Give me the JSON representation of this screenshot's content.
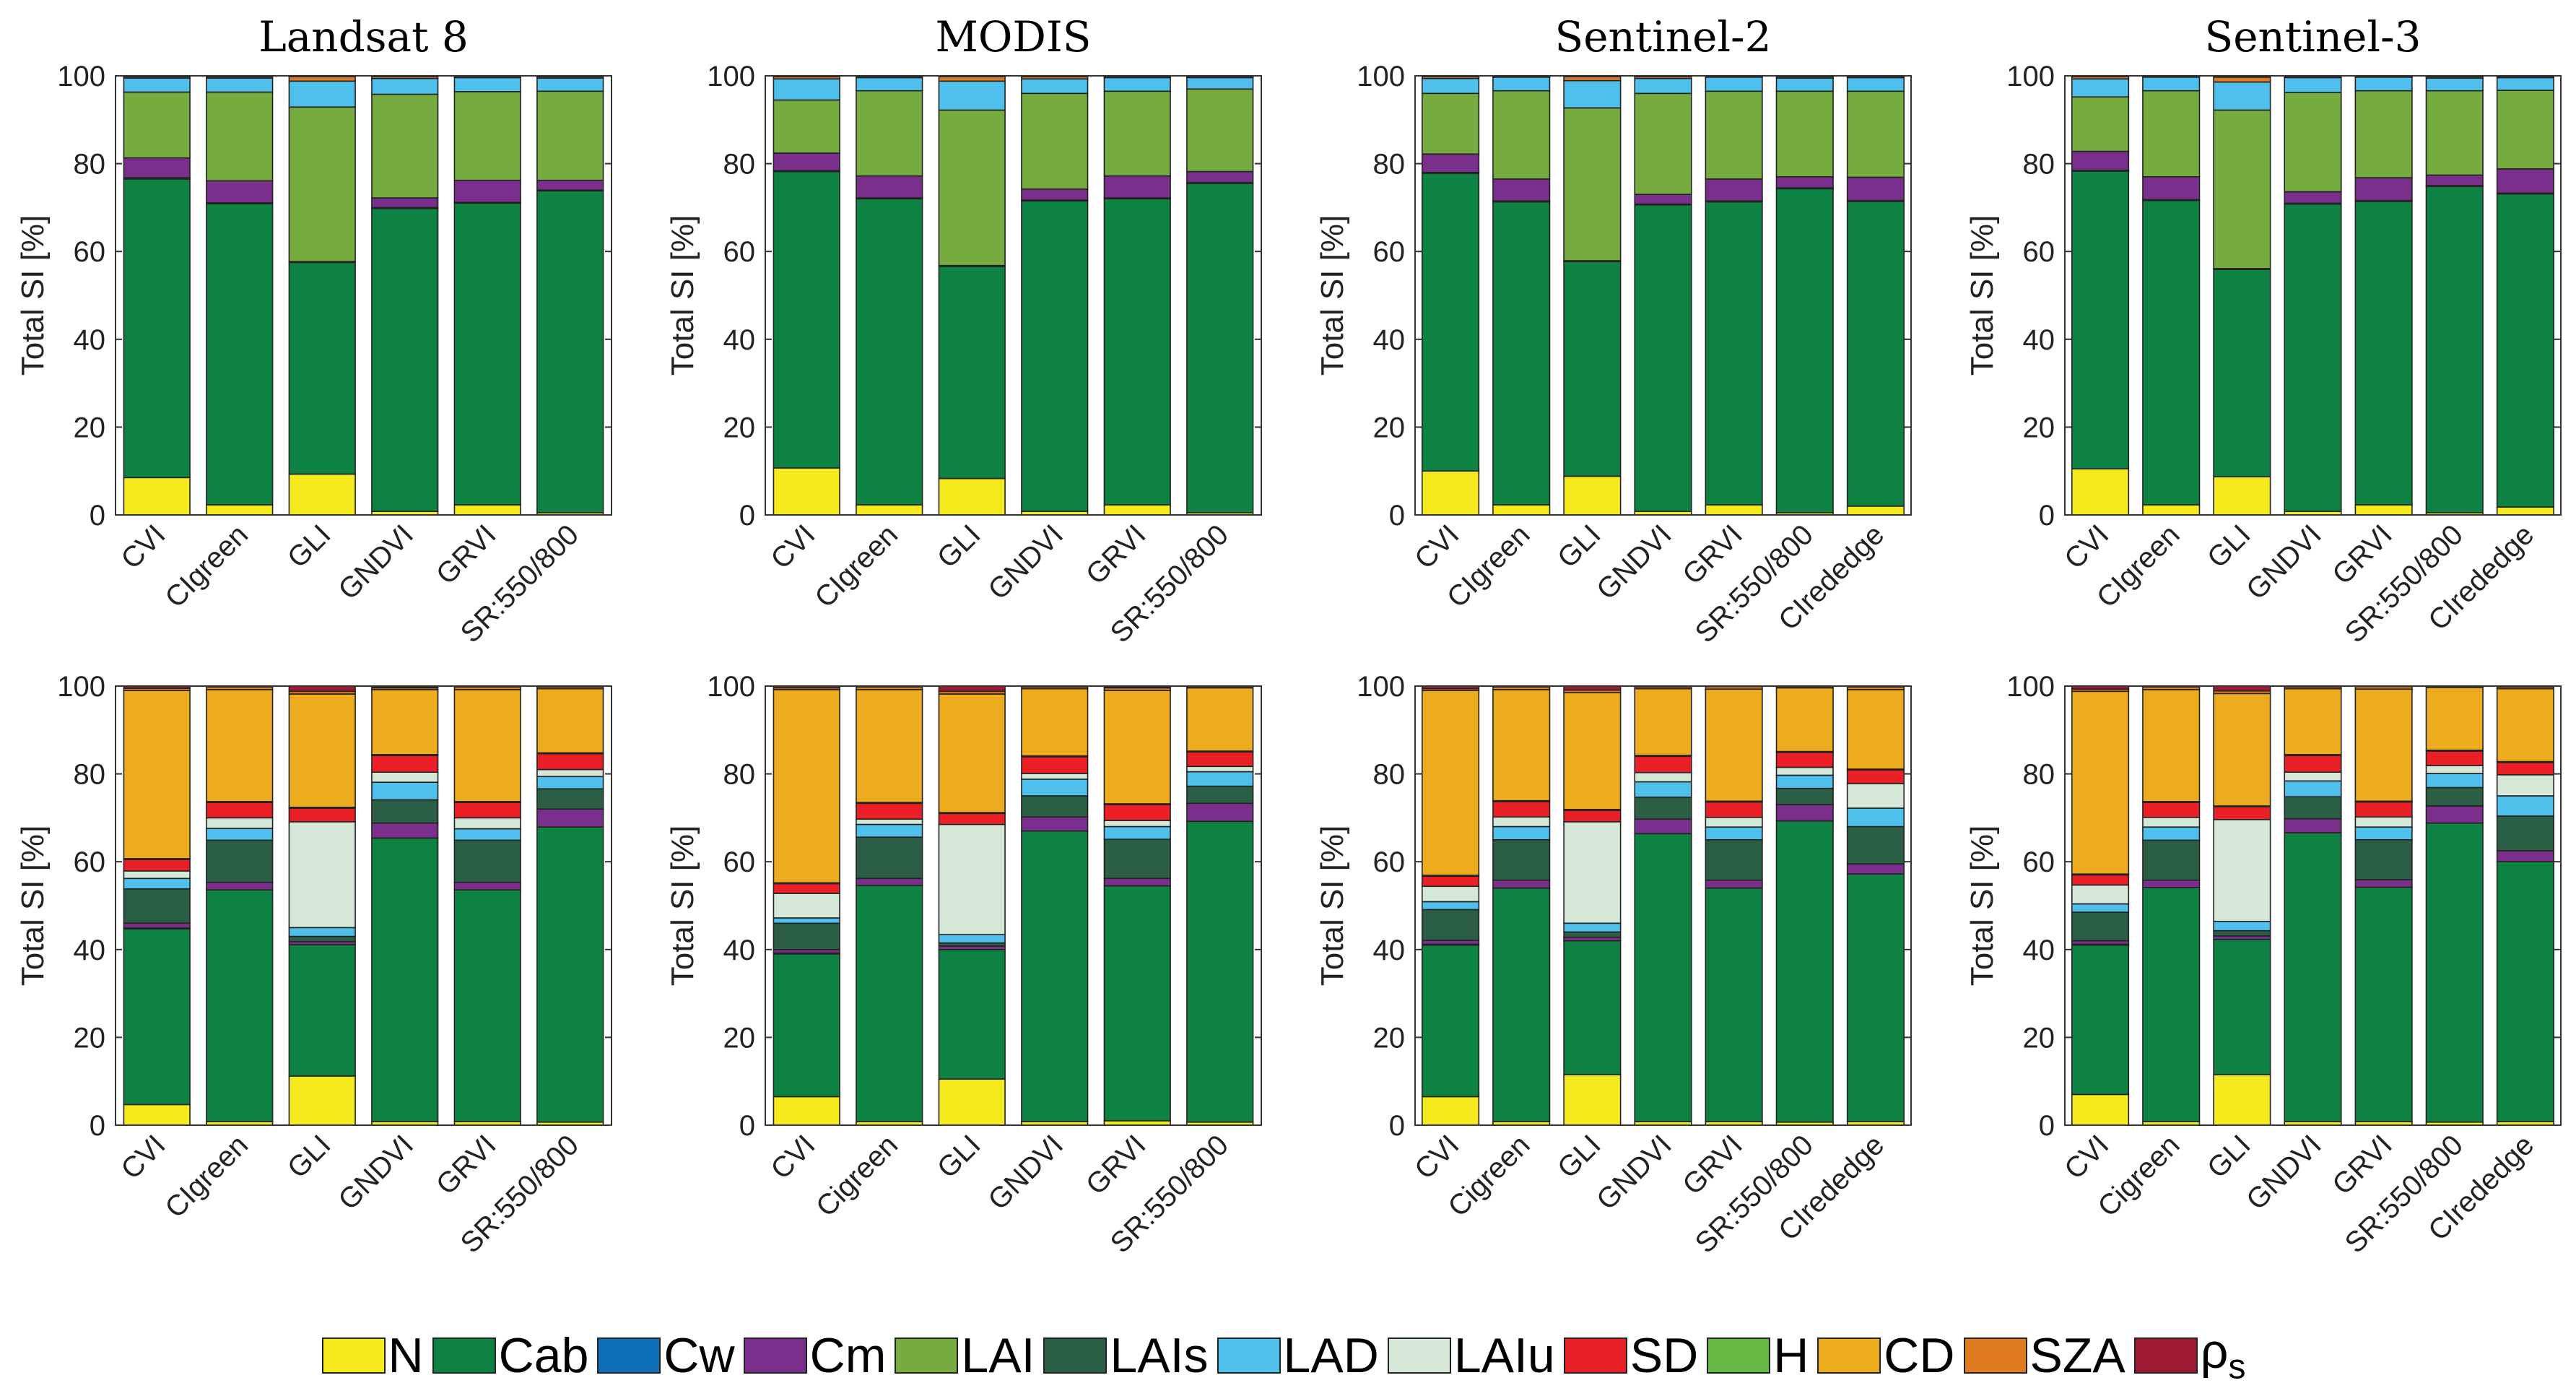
{
  "colors": {
    "N": "#f5ea1e",
    "Cab": "#0e8242",
    "Cw": "#0f6fb8",
    "Cm": "#7a2f8c",
    "LAI": "#76ab3f",
    "LAIs": "#2a5e45",
    "LAD": "#4fc0ec",
    "LAIu": "#d5e8d8",
    "SD": "#ea2026",
    "H": "#66b845",
    "CD": "#edac1e",
    "SZA": "#e07b22",
    "rho_s": "#9e1a33"
  },
  "legend": [
    {
      "key": "N",
      "label": "N"
    },
    {
      "key": "Cab",
      "label": "Cab"
    },
    {
      "key": "Cw",
      "label": "Cw"
    },
    {
      "key": "Cm",
      "label": "Cm"
    },
    {
      "key": "LAI",
      "label": "LAI"
    },
    {
      "key": "LAIs",
      "label": "LAIs"
    },
    {
      "key": "LAD",
      "label": "LAD"
    },
    {
      "key": "LAIu",
      "label": "LAIu"
    },
    {
      "key": "SD",
      "label": "SD"
    },
    {
      "key": "H",
      "label": "H"
    },
    {
      "key": "CD",
      "label": "CD"
    },
    {
      "key": "SZA",
      "label": "SZA"
    },
    {
      "key": "rho_s",
      "label": "ρ",
      "sub": "s"
    }
  ],
  "chart_data": [
    {
      "type": "bar",
      "stacked": true,
      "title": "Landsat 8",
      "ylabel": "Total SI [%]",
      "ylim": [
        0,
        100
      ],
      "yticks": [
        0,
        20,
        40,
        60,
        80,
        100
      ],
      "categories": [
        "CVI",
        "CIgreen",
        "GLI",
        "GNDVI",
        "GRVI",
        "SR:550/800"
      ],
      "bars": [
        {
          "N": 8.5,
          "Cab": 68,
          "Cw": 0.3,
          "Cm": 4.5,
          "LAI": 15,
          "LAD": 3.2,
          "SZA": 0.3,
          "rho_s": 0.2
        },
        {
          "N": 2.3,
          "Cab": 68.6,
          "Cw": 0.2,
          "Cm": 5,
          "LAI": 20.2,
          "LAD": 3.2,
          "SZA": 0.3,
          "rho_s": 0.2
        },
        {
          "N": 9.3,
          "Cab": 48.2,
          "Cw": 0.2,
          "LAI": 35.2,
          "LAD": 5.9,
          "SZA": 1,
          "rho_s": 0.2
        },
        {
          "N": 0.8,
          "Cab": 69,
          "Cw": 0.2,
          "Cm": 2.2,
          "LAI": 23.6,
          "LAD": 3.6,
          "SZA": 0.4,
          "rho_s": 0.2
        },
        {
          "N": 2.3,
          "Cab": 68.7,
          "Cw": 0.2,
          "Cm": 5,
          "LAI": 20.2,
          "LAD": 3.2,
          "SZA": 0.3,
          "rho_s": 0.1
        },
        {
          "N": 0.5,
          "Cab": 73.3,
          "Cw": 0.2,
          "Cm": 2.2,
          "LAI": 20.3,
          "LAD": 3.0,
          "SZA": 0.3,
          "rho_s": 0.2
        }
      ]
    },
    {
      "type": "bar",
      "stacked": true,
      "title": "MODIS",
      "ylabel": "Total SI [%]",
      "ylim": [
        0,
        100
      ],
      "yticks": [
        0,
        20,
        40,
        60,
        80,
        100
      ],
      "categories": [
        "CVI",
        "CIgreen",
        "GLI",
        "GNDVI",
        "GRVI",
        "SR:550/800"
      ],
      "bars": [
        {
          "N": 10.7,
          "Cab": 67.5,
          "Cw": 0.2,
          "Cm": 4,
          "LAI": 12.1,
          "LAD": 4.8,
          "SZA": 0.5,
          "rho_s": 0.2
        },
        {
          "N": 2.3,
          "Cab": 69.7,
          "Cw": 0.2,
          "Cm": 5,
          "LAI": 19.4,
          "LAD": 3,
          "SZA": 0.2,
          "rho_s": 0.2
        },
        {
          "N": 8.3,
          "Cab": 48.3,
          "Cw": 0.2,
          "LAI": 35.4,
          "LAD": 6.6,
          "SZA": 1.0,
          "rho_s": 0.2
        },
        {
          "N": 0.8,
          "Cab": 70.7,
          "Cw": 0.2,
          "Cm": 2.5,
          "LAI": 21.8,
          "LAD": 3.3,
          "SZA": 0.5,
          "rho_s": 0.2
        },
        {
          "N": 2.3,
          "Cab": 69.7,
          "Cw": 0.2,
          "Cm": 5,
          "LAI": 19.3,
          "LAD": 3.1,
          "SZA": 0.2,
          "rho_s": 0.2
        },
        {
          "N": 0.5,
          "Cab": 75,
          "Cw": 0.2,
          "Cm": 2.5,
          "LAI": 18.8,
          "LAD": 2.6,
          "SZA": 0.2,
          "rho_s": 0.2
        }
      ]
    },
    {
      "type": "bar",
      "stacked": true,
      "title": "Sentinel-2",
      "ylabel": "Total SI [%]",
      "ylim": [
        0,
        100
      ],
      "yticks": [
        0,
        20,
        40,
        60,
        80,
        100
      ],
      "categories": [
        "CVI",
        "CIgreen",
        "GLI",
        "GNDVI",
        "GRVI",
        "SR:550/800",
        "CIrededge"
      ],
      "bars": [
        {
          "N": 10,
          "Cab": 67.8,
          "Cw": 0.2,
          "Cm": 4.2,
          "LAI": 13.8,
          "LAD": 3.4,
          "SZA": 0.4,
          "rho_s": 0.2
        },
        {
          "N": 2.3,
          "Cab": 69,
          "Cw": 0.2,
          "Cm": 5,
          "LAI": 20.1,
          "LAD": 3.1,
          "SZA": 0.1,
          "rho_s": 0.2
        },
        {
          "N": 8.8,
          "Cab": 48.9,
          "Cw": 0.2,
          "LAI": 34.8,
          "LAD": 6.2,
          "SZA": 0.9,
          "rho_s": 0.2
        },
        {
          "N": 0.8,
          "Cab": 69.8,
          "Cw": 0.2,
          "Cm": 2.2,
          "LAI": 23,
          "LAD": 3.4,
          "SZA": 0.4,
          "rho_s": 0.2
        },
        {
          "N": 2.3,
          "Cab": 69,
          "Cw": 0.2,
          "Cm": 5,
          "LAI": 20,
          "LAD": 3.2,
          "SZA": 0.1,
          "rho_s": 0.2
        },
        {
          "N": 0.5,
          "Cab": 73.8,
          "Cw": 0.2,
          "Cm": 2.5,
          "LAI": 19.5,
          "LAD": 3.0,
          "SZA": 0.3,
          "rho_s": 0.2
        },
        {
          "N": 2,
          "Cab": 69.4,
          "Cw": 0.2,
          "Cm": 5.3,
          "LAI": 19.6,
          "LAD": 3.1,
          "SZA": 0.2,
          "rho_s": 0.2
        }
      ]
    },
    {
      "type": "bar",
      "stacked": true,
      "title": "Sentinel-3",
      "ylabel": "Total SI [%]",
      "ylim": [
        0,
        100
      ],
      "yticks": [
        0,
        20,
        40,
        60,
        80,
        100
      ],
      "categories": [
        "CVI",
        "CIgreen",
        "GLI",
        "GNDVI",
        "GRVI",
        "SR:550/800",
        "CIrededge"
      ],
      "bars": [
        {
          "N": 10.5,
          "Cab": 67.8,
          "Cw": 0.2,
          "Cm": 4.3,
          "LAI": 12.4,
          "LAD": 4.1,
          "SZA": 0.5,
          "rho_s": 0.2
        },
        {
          "N": 2.3,
          "Cab": 69.3,
          "Cw": 0.2,
          "Cm": 5.2,
          "LAI": 19.6,
          "LAD": 3.1,
          "SZA": 0.1,
          "rho_s": 0.2
        },
        {
          "N": 8.7,
          "Cab": 47.2,
          "Cw": 0.2,
          "LAI": 36.1,
          "LAD": 6.4,
          "SZA": 1.1,
          "rho_s": 0.3
        },
        {
          "N": 0.8,
          "Cab": 70,
          "Cw": 0.2,
          "Cm": 2.6,
          "LAI": 22.6,
          "LAD": 3.4,
          "SZA": 0.2,
          "rho_s": 0.2
        },
        {
          "N": 2.3,
          "Cab": 69.1,
          "Cw": 0.2,
          "Cm": 5.2,
          "LAI": 19.8,
          "LAD": 3.1,
          "SZA": 0.1,
          "rho_s": 0.2
        },
        {
          "N": 0.5,
          "Cab": 74.3,
          "Cw": 0.2,
          "Cm": 2.4,
          "LAI": 19.2,
          "LAD": 2.9,
          "SZA": 0.3,
          "rho_s": 0.2
        },
        {
          "N": 1.8,
          "Cab": 71.3,
          "Cw": 0.2,
          "Cm": 5.5,
          "LAI": 17.9,
          "LAD": 2.9,
          "SZA": 0.2,
          "rho_s": 0.2
        }
      ]
    },
    {
      "type": "bar",
      "stacked": true,
      "title": "",
      "ylabel": "Total SI [%]",
      "ylim": [
        0,
        100
      ],
      "yticks": [
        0,
        20,
        40,
        60,
        80,
        100
      ],
      "categories": [
        "CVI",
        "CIgreen",
        "GLI",
        "GNDVI",
        "GRVI",
        "SR:550/800"
      ],
      "bars": [
        {
          "N": 4.7,
          "Cab": 40,
          "Cw": 0.2,
          "Cm": 1.1,
          "LAIs": 7.8,
          "LAD": 2.4,
          "LAIu": 1.7,
          "SD": 2.6,
          "H": 0.2,
          "CD": 38.3,
          "SZA": 0.5,
          "rho_s": 0.6
        },
        {
          "N": 0.8,
          "Cab": 52.8,
          "Cm": 1.7,
          "LAIs": 9.6,
          "LAD": 2.7,
          "LAIu": 2.4,
          "SD": 3.5,
          "H": 0.2,
          "CD": 25.5,
          "SZA": 0.6,
          "rho_s": 0.2
        },
        {
          "N": 11.2,
          "Cab": 29.9,
          "Cm": 0.7,
          "LAIs": 1.2,
          "LAD": 2.0,
          "LAIu": 24.1,
          "SD": 3.1,
          "H": 0.2,
          "CD": 25.8,
          "SZA": 0.6,
          "rho_s": 1.2
        },
        {
          "N": 0.8,
          "Cab": 64.6,
          "Cm": 3.4,
          "LAIs": 5.3,
          "LAD": 4.0,
          "LAIu": 2.3,
          "SD": 3.8,
          "H": 0.2,
          "CD": 14.8,
          "SZA": 0.4,
          "rho_s": 0.2
        },
        {
          "N": 0.8,
          "Cab": 52.8,
          "Cm": 1.7,
          "LAIs": 9.6,
          "LAD": 2.6,
          "LAIu": 2.5,
          "SD": 3.5,
          "H": 0.2,
          "CD": 25.5,
          "SZA": 0.6,
          "rho_s": 0.2
        },
        {
          "N": 0.7,
          "Cab": 67.2,
          "Cm": 4.1,
          "LAIs": 4.6,
          "LAD": 2.8,
          "LAIu": 1.6,
          "SD": 3.6,
          "H": 0.2,
          "CD": 14.6,
          "SZA": 0.4,
          "rho_s": 0.2
        }
      ]
    },
    {
      "type": "bar",
      "stacked": true,
      "title": "",
      "ylabel": "Total SI [%]",
      "ylim": [
        0,
        100
      ],
      "yticks": [
        0,
        20,
        40,
        60,
        80,
        100
      ],
      "categories": [
        "CVI",
        "Cigreen",
        "GLI",
        "GNDVI",
        "GRVI",
        "SR:550/800"
      ],
      "bars": [
        {
          "N": 6.5,
          "Cab": 32.5,
          "Cw": 0.2,
          "Cm": 0.8,
          "LAIs": 6,
          "LAD": 1.2,
          "LAIu": 5.6,
          "SD": 2.2,
          "H": 0.2,
          "CD": 44,
          "SZA": 0.4,
          "rho_s": 0.7
        },
        {
          "N": 0.8,
          "Cab": 53.8,
          "Cm": 1.6,
          "LAIs": 9.4,
          "LAD": 2.9,
          "LAIu": 1.2,
          "SD": 3.6,
          "H": 0.2,
          "CD": 25.7,
          "SZA": 0.6,
          "rho_s": 0.2
        },
        {
          "N": 10.5,
          "Cab": 29.5,
          "Cm": 0.8,
          "LAIs": 0.7,
          "LAD": 1.9,
          "LAIu": 25.1,
          "SD": 2.5,
          "H": 0.2,
          "CD": 27,
          "SZA": 0.6,
          "rho_s": 1.2
        },
        {
          "N": 0.8,
          "Cab": 66.2,
          "Cm": 3.2,
          "LAIs": 4.8,
          "LAD": 3.8,
          "LAIu": 1.3,
          "SD": 3.8,
          "H": 0.2,
          "CD": 15.3,
          "SZA": 0.4,
          "rho_s": 0.2
        },
        {
          "N": 1,
          "Cab": 53.5,
          "Cm": 1.7,
          "LAIs": 8.9,
          "LAD": 2.9,
          "LAIu": 1.4,
          "SD": 3.6,
          "H": 0.2,
          "CD": 25.8,
          "SZA": 0.6,
          "rho_s": 0.2
        },
        {
          "N": 0.7,
          "Cab": 68.5,
          "Cm": 4.1,
          "LAIs": 3.9,
          "LAD": 3.3,
          "LAIu": 1.2,
          "SD": 3.3,
          "H": 0.2,
          "CD": 14.4,
          "SZA": 0.3,
          "rho_s": 0.2
        }
      ]
    },
    {
      "type": "bar",
      "stacked": true,
      "title": "",
      "ylabel": "Total SI [%]",
      "ylim": [
        0,
        100
      ],
      "yticks": [
        0,
        20,
        40,
        60,
        80,
        100
      ],
      "categories": [
        "CVI",
        "Cigreen",
        "GLI",
        "GNDVI",
        "GRVI",
        "SR:550/800",
        "CIrededge"
      ],
      "bars": [
        {
          "N": 6.5,
          "Cab": 34.5,
          "Cw": 0.2,
          "Cm": 0.9,
          "LAIs": 7,
          "LAD": 1.8,
          "LAIu": 3.5,
          "SD": 2.3,
          "H": 0.2,
          "CD": 42.1,
          "SZA": 0.4,
          "rho_s": 0.7
        },
        {
          "N": 0.8,
          "Cab": 53.2,
          "Cm": 1.8,
          "LAIs": 9.2,
          "LAD": 3,
          "LAIu": 2.2,
          "SD": 3.5,
          "H": 0.2,
          "CD": 25.3,
          "SZA": 0.6,
          "rho_s": 0.2
        },
        {
          "N": 11.5,
          "Cab": 30.5,
          "Cm": 0.8,
          "LAIs": 1.2,
          "LAD": 2,
          "LAIu": 23.1,
          "SD": 2.6,
          "H": 0.2,
          "CD": 26.6,
          "SZA": 0.6,
          "rho_s": 1.1
        },
        {
          "N": 0.8,
          "Cab": 65.6,
          "Cm": 3.3,
          "LAIs": 5,
          "LAD": 3.5,
          "LAIu": 2.1,
          "SD": 3.7,
          "H": 0.2,
          "CD": 15.2,
          "SZA": 0.4,
          "rho_s": 0.2
        },
        {
          "N": 0.8,
          "Cab": 53.2,
          "Cm": 1.8,
          "LAIs": 9.2,
          "LAD": 2.9,
          "LAIu": 2.2,
          "SD": 3.5,
          "H": 0.2,
          "CD": 25.5,
          "SZA": 0.6,
          "rho_s": 0.1
        },
        {
          "N": 0.7,
          "Cab": 68.6,
          "Cm": 3.7,
          "LAIs": 3.7,
          "LAD": 3,
          "LAIu": 1.8,
          "SD": 3.4,
          "H": 0.2,
          "CD": 14.5,
          "SZA": 0.3,
          "rho_s": 0.1
        },
        {
          "N": 0.8,
          "Cab": 56.4,
          "Cm": 2.3,
          "LAIs": 8.5,
          "LAD": 4.2,
          "LAIu": 5.6,
          "SD": 3.1,
          "H": 0.2,
          "CD": 18.1,
          "SZA": 0.6,
          "rho_s": 0.2
        }
      ]
    },
    {
      "type": "bar",
      "stacked": true,
      "title": "",
      "ylabel": "Total SI [%]",
      "ylim": [
        0,
        100
      ],
      "yticks": [
        0,
        20,
        40,
        60,
        80,
        100
      ],
      "categories": [
        "CVI",
        "Cigreen",
        "GLI",
        "GNDVI",
        "GRVI",
        "SR:550/800",
        "CIrededge"
      ],
      "bars": [
        {
          "N": 7,
          "Cab": 34,
          "Cw": 0.2,
          "Cm": 0.8,
          "LAIs": 6.5,
          "LAD": 1.9,
          "LAIu": 4.3,
          "SD": 2.3,
          "H": 0.2,
          "CD": 41.6,
          "SZA": 0.5,
          "rho_s": 0.7
        },
        {
          "N": 0.8,
          "Cab": 53.3,
          "Cm": 1.7,
          "LAIs": 9.1,
          "LAD": 3,
          "LAIu": 2.2,
          "SD": 3.4,
          "H": 0.2,
          "CD": 25.5,
          "SZA": 0.6,
          "rho_s": 0.2
        },
        {
          "N": 11.5,
          "Cab": 30.8,
          "Cm": 0.8,
          "LAIs": 1.2,
          "LAD": 2.1,
          "LAIu": 23.2,
          "SD": 2.9,
          "H": 0.2,
          "CD": 25.6,
          "SZA": 0.6,
          "rho_s": 1.1
        },
        {
          "N": 0.8,
          "Cab": 65.8,
          "Cm": 3.2,
          "LAIs": 5,
          "LAD": 3.6,
          "LAIu": 2,
          "SD": 3.8,
          "H": 0.2,
          "CD": 15,
          "SZA": 0.4,
          "rho_s": 0.2
        },
        {
          "N": 0.8,
          "Cab": 53.4,
          "Cm": 1.7,
          "LAIs": 9.1,
          "LAD": 2.9,
          "LAIu": 2.3,
          "SD": 3.4,
          "H": 0.2,
          "CD": 25.5,
          "SZA": 0.6,
          "rho_s": 0.1
        },
        {
          "N": 0.7,
          "Cab": 68.1,
          "Cm": 3.9,
          "LAIs": 4.2,
          "LAD": 3.2,
          "LAIu": 1.8,
          "SD": 3.3,
          "H": 0.2,
          "CD": 14.3,
          "SZA": 0.2,
          "rho_s": 0.1
        },
        {
          "N": 0.8,
          "Cab": 59.2,
          "Cm": 2.5,
          "LAIs": 7.9,
          "LAD": 4.6,
          "LAIu": 4.8,
          "SD": 2.8,
          "H": 0.2,
          "CD": 16.6,
          "SZA": 0.4,
          "rho_s": 0.2
        }
      ]
    }
  ]
}
